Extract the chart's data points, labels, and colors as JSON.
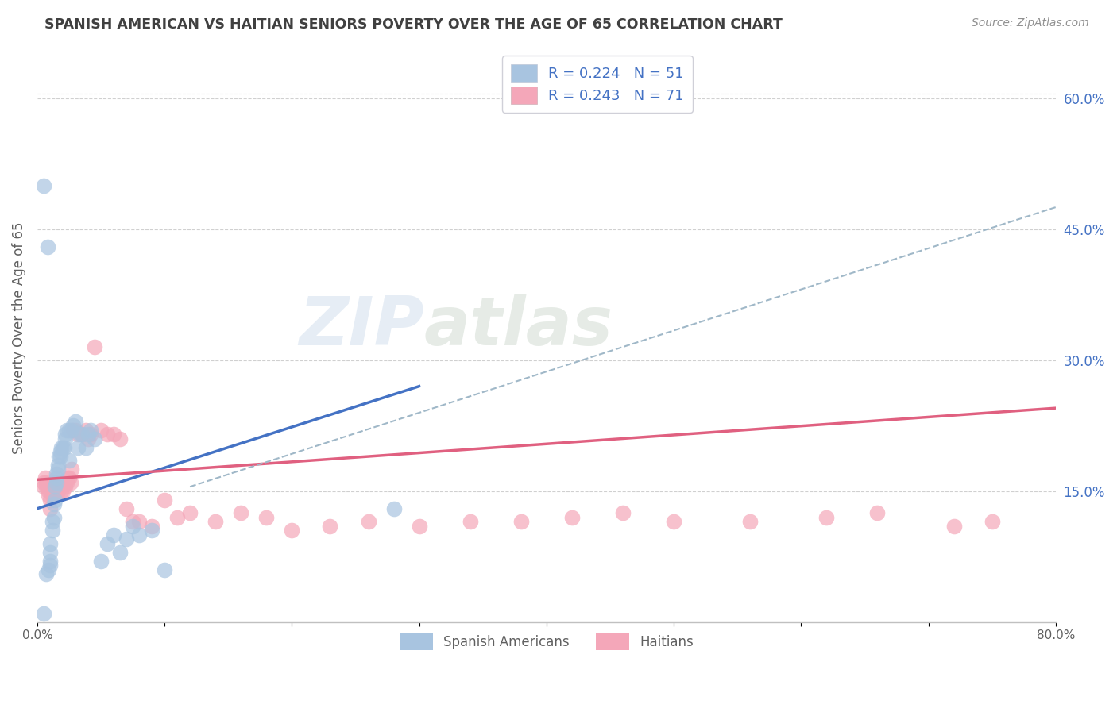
{
  "title": "SPANISH AMERICAN VS HAITIAN SENIORS POVERTY OVER THE AGE OF 65 CORRELATION CHART",
  "source": "Source: ZipAtlas.com",
  "ylabel": "Seniors Poverty Over the Age of 65",
  "xlim": [
    0.0,
    0.8
  ],
  "ylim": [
    0.0,
    0.65
  ],
  "xticks": [
    0.0,
    0.1,
    0.2,
    0.3,
    0.4,
    0.5,
    0.6,
    0.7,
    0.8
  ],
  "xticklabels": [
    "0.0%",
    "",
    "",
    "",
    "",
    "",
    "",
    "",
    "80.0%"
  ],
  "right_yticks": [
    0.15,
    0.3,
    0.45,
    0.6
  ],
  "right_yticklabels": [
    "15.0%",
    "30.0%",
    "45.0%",
    "60.0%"
  ],
  "watermark": "ZIPatlas",
  "color_blue": "#a8c4e0",
  "color_blue_line": "#4472c4",
  "color_pink": "#f4a7b9",
  "color_pink_line": "#e06080",
  "color_dashed": "#a0b8c8",
  "background": "#ffffff",
  "grid_color": "#d0d0d0",
  "title_color": "#404040",
  "source_color": "#909090",
  "right_tick_color": "#4472c4",
  "trendline_blue": {
    "x_start": 0.0,
    "y_start": 0.13,
    "x_end": 0.3,
    "y_end": 0.27
  },
  "trendline_pink": {
    "x_start": 0.0,
    "y_start": 0.163,
    "x_end": 0.8,
    "y_end": 0.245
  },
  "dashed_line": {
    "x_start": 0.12,
    "y_start": 0.155,
    "x_end": 0.8,
    "y_end": 0.475
  },
  "spanish_americans": {
    "x": [
      0.005,
      0.007,
      0.008,
      0.009,
      0.01,
      0.01,
      0.01,
      0.01,
      0.012,
      0.012,
      0.013,
      0.013,
      0.014,
      0.014,
      0.015,
      0.015,
      0.015,
      0.016,
      0.016,
      0.017,
      0.018,
      0.018,
      0.019,
      0.02,
      0.021,
      0.022,
      0.022,
      0.023,
      0.025,
      0.025,
      0.027,
      0.028,
      0.03,
      0.032,
      0.033,
      0.035,
      0.038,
      0.04,
      0.042,
      0.045,
      0.05,
      0.055,
      0.06,
      0.065,
      0.07,
      0.075,
      0.08,
      0.09,
      0.1,
      0.28,
      0.005
    ],
    "y": [
      0.5,
      0.055,
      0.43,
      0.06,
      0.065,
      0.07,
      0.08,
      0.09,
      0.105,
      0.115,
      0.12,
      0.135,
      0.14,
      0.155,
      0.16,
      0.165,
      0.17,
      0.175,
      0.18,
      0.19,
      0.19,
      0.195,
      0.2,
      0.2,
      0.2,
      0.21,
      0.215,
      0.22,
      0.185,
      0.22,
      0.22,
      0.225,
      0.23,
      0.2,
      0.215,
      0.215,
      0.2,
      0.215,
      0.22,
      0.21,
      0.07,
      0.09,
      0.1,
      0.08,
      0.095,
      0.11,
      0.1,
      0.105,
      0.06,
      0.13,
      0.01
    ]
  },
  "haitians": {
    "x": [
      0.005,
      0.005,
      0.006,
      0.007,
      0.007,
      0.008,
      0.009,
      0.009,
      0.01,
      0.01,
      0.01,
      0.011,
      0.012,
      0.012,
      0.013,
      0.013,
      0.014,
      0.014,
      0.015,
      0.015,
      0.016,
      0.016,
      0.017,
      0.018,
      0.019,
      0.02,
      0.02,
      0.021,
      0.022,
      0.022,
      0.023,
      0.024,
      0.025,
      0.026,
      0.027,
      0.028,
      0.03,
      0.032,
      0.035,
      0.038,
      0.04,
      0.042,
      0.045,
      0.05,
      0.055,
      0.06,
      0.065,
      0.07,
      0.075,
      0.08,
      0.09,
      0.1,
      0.11,
      0.12,
      0.14,
      0.16,
      0.18,
      0.2,
      0.23,
      0.26,
      0.3,
      0.34,
      0.38,
      0.42,
      0.46,
      0.5,
      0.56,
      0.62,
      0.66,
      0.72,
      0.75
    ],
    "y": [
      0.155,
      0.16,
      0.165,
      0.155,
      0.16,
      0.155,
      0.15,
      0.145,
      0.13,
      0.14,
      0.15,
      0.155,
      0.145,
      0.15,
      0.155,
      0.16,
      0.155,
      0.16,
      0.15,
      0.155,
      0.15,
      0.155,
      0.155,
      0.155,
      0.15,
      0.15,
      0.16,
      0.16,
      0.155,
      0.16,
      0.16,
      0.165,
      0.165,
      0.16,
      0.175,
      0.22,
      0.22,
      0.215,
      0.215,
      0.22,
      0.21,
      0.215,
      0.315,
      0.22,
      0.215,
      0.215,
      0.21,
      0.13,
      0.115,
      0.115,
      0.11,
      0.14,
      0.12,
      0.125,
      0.115,
      0.125,
      0.12,
      0.105,
      0.11,
      0.115,
      0.11,
      0.115,
      0.115,
      0.12,
      0.125,
      0.115,
      0.115,
      0.12,
      0.125,
      0.11,
      0.115
    ]
  }
}
